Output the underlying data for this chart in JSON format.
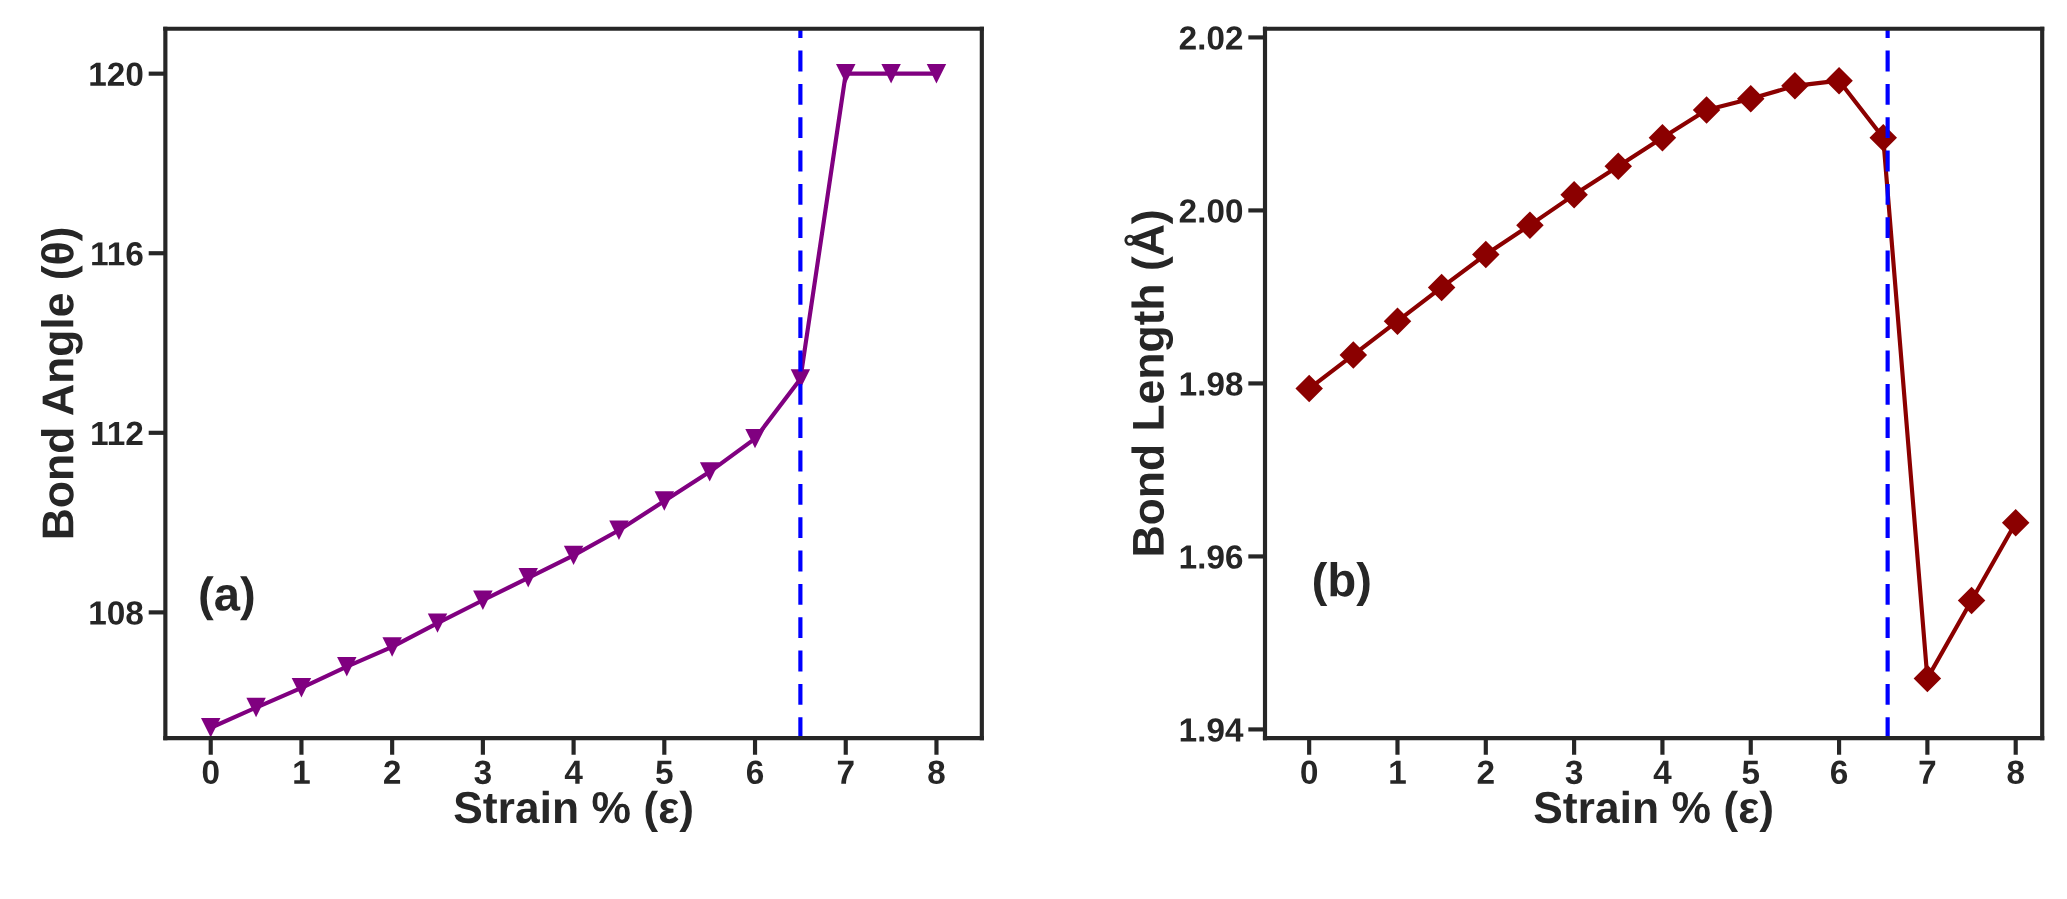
{
  "chart_data": [
    {
      "type": "line",
      "xlabel": "Strain % (ε)",
      "ylabel": "Bond Angle (θ)",
      "annotations": [
        "(a)"
      ],
      "x": [
        0,
        0.5,
        1,
        1.5,
        2,
        2.5,
        3,
        3.5,
        4,
        4.5,
        5,
        5.5,
        6,
        6.5,
        7,
        7.5,
        8
      ],
      "series": [
        {
          "color": "#800080",
          "values": [
            105.43,
            105.88,
            106.32,
            106.79,
            107.23,
            107.76,
            108.27,
            108.77,
            109.27,
            109.83,
            110.48,
            111.13,
            111.87,
            113.2,
            120,
            120,
            120
          ]
        }
      ],
      "marker": "triangle",
      "line_style": "solid",
      "xlim": [
        -0.5,
        8.5
      ],
      "xticks": [
        0,
        1,
        2,
        3,
        4,
        5,
        6,
        7,
        8
      ],
      "ylim": [
        105.2,
        121
      ],
      "yticks": [
        108,
        112,
        116,
        120
      ],
      "ref_lines": [
        {
          "axis": "x",
          "value": 6.5,
          "color": "#0000ff",
          "line_style": "dashed"
        }
      ],
      "grid": false,
      "legend": false
    },
    {
      "type": "line",
      "xlabel": "Strain % (ε)",
      "ylabel": "Bond Length (Å)",
      "annotations": [
        "(b)"
      ],
      "x": [
        0,
        0.5,
        1,
        1.5,
        2,
        2.5,
        3,
        3.5,
        4,
        4.5,
        5,
        5.5,
        6,
        6.5,
        7,
        7.5,
        8
      ],
      "series": [
        {
          "color": "#8b0000",
          "values": [
            1.9794,
            1.9833,
            1.9872,
            1.9911,
            1.9949,
            1.9983,
            2.0018,
            2.0051,
            2.0084,
            2.0116,
            2.0129,
            2.0144,
            2.015,
            2.0084,
            1.9459,
            1.9549,
            1.9639
          ]
        }
      ],
      "marker": "diamond",
      "line_style": "solid",
      "xlim": [
        -0.5,
        8.3
      ],
      "xticks": [
        0,
        1,
        2,
        3,
        4,
        5,
        6,
        7,
        8
      ],
      "ylim": [
        1.939,
        2.021
      ],
      "yticks": [
        {
          "value": 1.94,
          "label": "1.94"
        },
        {
          "value": 1.96,
          "label": "1.96"
        },
        {
          "value": 1.98,
          "label": "1.98"
        },
        {
          "value": 2.0,
          "label": "2.00"
        },
        {
          "value": 2.02,
          "label": "2.02"
        }
      ],
      "ref_lines": [
        {
          "axis": "x",
          "value": 6.55,
          "color": "#0000ff",
          "line_style": "dashed"
        }
      ],
      "grid": false,
      "legend": false
    }
  ]
}
